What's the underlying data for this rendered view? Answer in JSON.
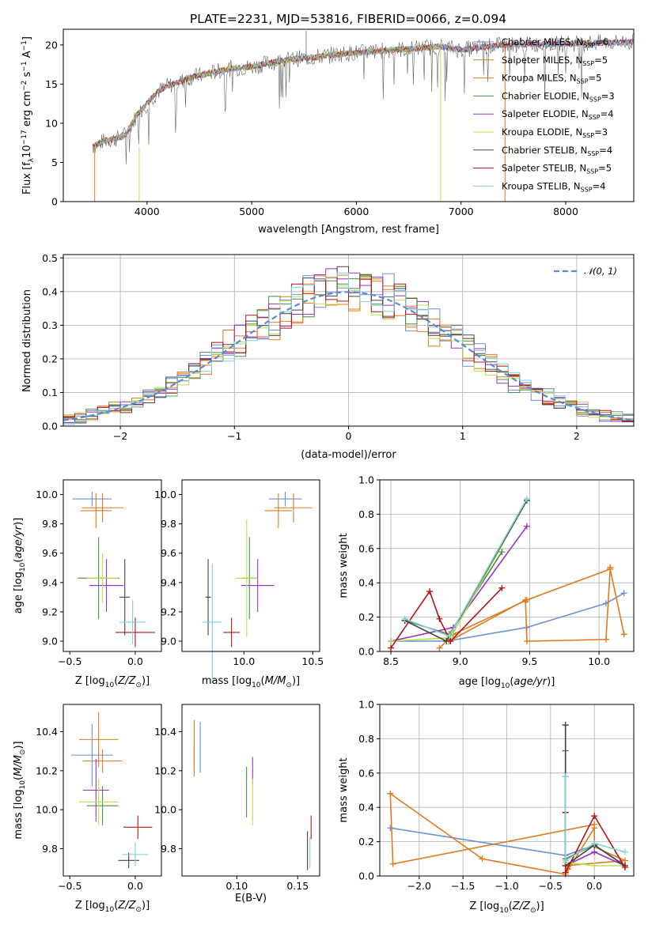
{
  "title": "PLATE=2231, MJD=53816, FIBERID=0066, z=0.094",
  "colors": [
    "#6a8fd8",
    "#e86f3c",
    "#d8883a",
    "#4c8c4c",
    "#a64ac8",
    "#d6d64a",
    "#6e6e6e",
    "#b22a2a",
    "#7fd0dc"
  ],
  "line_colors": [
    "#6a8fd8",
    "#e07a1f",
    "#e07a1f",
    "#4c8c4c",
    "#9b30c8",
    "#b9e04a",
    "#444444",
    "#b01515",
    "#7fd0dc"
  ],
  "legend": [
    {
      "label": "Chabrier MILES, N",
      "sub": "SSP",
      "rest": "=6"
    },
    {
      "label": "Salpeter MILES, N",
      "sub": "SSP",
      "rest": "=5"
    },
    {
      "label": "Kroupa MILES, N",
      "sub": "SSP",
      "rest": "=5"
    },
    {
      "label": "Chabrier ELODIE, N",
      "sub": "SSP",
      "rest": "=3"
    },
    {
      "label": "Salpeter ELODIE, N",
      "sub": "SSP",
      "rest": "=4"
    },
    {
      "label": "Kroupa ELODIE, N",
      "sub": "SSP",
      "rest": "=3"
    },
    {
      "label": "Chabrier STELIB, N",
      "sub": "SSP",
      "rest": "=4"
    },
    {
      "label": "Salpeter STELIB, N",
      "sub": "SSP",
      "rest": "=5"
    },
    {
      "label": "Kroupa STELIB, N",
      "sub": "SSP",
      "rest": "=4"
    }
  ],
  "chart_data": [
    {
      "type": "line",
      "id": "spectrum",
      "xlabel": "wavelength [Angstrom, rest frame]",
      "ylabel": "Flux [f_λ 10^-17 erg cm^-2 s^-1 A^-1]",
      "xlim": [
        3200,
        8650
      ],
      "ylim": [
        0,
        22
      ],
      "xticks": [
        4000,
        5000,
        6000,
        7000,
        8000
      ],
      "yticks": [
        0,
        5,
        10,
        15,
        20
      ],
      "x": [
        3480,
        3600,
        3700,
        3800,
        3900,
        4000,
        4100,
        4200,
        4300,
        4400,
        4600,
        4800,
        5000,
        5200,
        5400,
        5600,
        5800,
        6000,
        6200,
        6400,
        6600,
        6800,
        7000,
        7200,
        7400
      ],
      "y": [
        7.0,
        7.8,
        8.0,
        8.6,
        11.0,
        12.5,
        14.0,
        14.8,
        15.2,
        15.8,
        16.4,
        17.0,
        17.2,
        17.8,
        18.2,
        18.4,
        18.8,
        19.0,
        19.2,
        19.4,
        19.6,
        19.8,
        19.4,
        19.7,
        20.0
      ]
    },
    {
      "type": "bar",
      "id": "residuals",
      "xlabel": "(data-model)/error",
      "ylabel": "Normed distribution",
      "legend": "top-right",
      "gaussian_label": "𝒩(0, 1)",
      "xlim": [
        -2.5,
        2.5
      ],
      "ylim": [
        0,
        0.51
      ],
      "xticks": [
        -2,
        -1,
        0,
        1,
        2
      ],
      "xtick_labels": [
        "−2",
        "−1",
        "0",
        "1",
        "2"
      ],
      "yticks": [
        0.0,
        0.1,
        0.2,
        0.3,
        0.4,
        0.5
      ],
      "ytick_labels": [
        "0.0",
        "0.1",
        "0.2",
        "0.3",
        "0.4",
        "0.5"
      ],
      "bin_width": 0.1,
      "grid": true
    },
    {
      "type": "scatter",
      "id": "age_vs_Z",
      "xlabel": "Z [log10(Z/Z⊙)]",
      "ylabel": "age [log10(age/yr)]",
      "xlim": [
        -0.55,
        0.2
      ],
      "ylim": [
        8.93,
        10.1
      ],
      "xticks": [
        -0.5,
        0.0
      ],
      "xtick_labels": [
        "−0.5",
        "0.0"
      ],
      "yticks": [
        9.0,
        9.2,
        9.4,
        9.6,
        9.8,
        10.0
      ],
      "ytick_labels": [
        "9.0",
        "9.2",
        "9.4",
        "9.6",
        "9.8",
        "10.0"
      ],
      "points": [
        {
          "x": -0.33,
          "y": 9.97,
          "xerr": 0.15,
          "yerr": 0.05
        },
        {
          "x": -0.25,
          "y": 9.91,
          "xerr": 0.16,
          "yerr": 0.1
        },
        {
          "x": -0.3,
          "y": 9.89,
          "xerr": 0.12,
          "yerr": 0.12
        },
        {
          "x": -0.28,
          "y": 9.43,
          "xerr": 0.16,
          "yerr": 0.28
        },
        {
          "x": -0.22,
          "y": 9.38,
          "xerr": 0.13,
          "yerr": 0.18
        },
        {
          "x": -0.25,
          "y": 9.43,
          "xerr": 0.12,
          "yerr": 0.17
        },
        {
          "x": -0.08,
          "y": 9.3,
          "xerr": 0.04,
          "yerr": 0.26
        },
        {
          "x": 0.0,
          "y": 9.06,
          "xerr": 0.15,
          "yerr": 0.1
        },
        {
          "x": -0.02,
          "y": 9.13,
          "xerr": 0.1,
          "yerr": 0.15
        }
      ]
    },
    {
      "type": "scatter",
      "id": "age_vs_mass",
      "xlabel": "mass [log10(M/M⊙)]",
      "ylabel": "",
      "xlim": [
        9.55,
        10.55
      ],
      "ylim": [
        8.93,
        10.1
      ],
      "xticks": [
        10.0,
        10.5
      ],
      "xtick_labels": [
        "10.0",
        "10.5"
      ],
      "yticks": [
        9.0,
        9.2,
        9.4,
        9.6,
        9.8,
        10.0
      ],
      "ytick_labels": [
        "9.0",
        "9.2",
        "9.4",
        "9.6",
        "9.8",
        "10.0"
      ],
      "points": [
        {
          "x": 10.3,
          "y": 9.97,
          "xerr": 0.12,
          "yerr": 0.05
        },
        {
          "x": 10.36,
          "y": 9.91,
          "xerr": 0.14,
          "yerr": 0.1
        },
        {
          "x": 10.25,
          "y": 9.89,
          "xerr": 0.1,
          "yerr": 0.12
        },
        {
          "x": 10.04,
          "y": 9.43,
          "xerr": 0.06,
          "yerr": 0.28
        },
        {
          "x": 10.1,
          "y": 9.38,
          "xerr": 0.12,
          "yerr": 0.18
        },
        {
          "x": 10.02,
          "y": 9.43,
          "xerr": 0.08,
          "yerr": 0.4
        },
        {
          "x": 9.74,
          "y": 9.3,
          "xerr": 0.02,
          "yerr": 0.26
        },
        {
          "x": 9.91,
          "y": 9.06,
          "xerr": 0.06,
          "yerr": 0.1
        },
        {
          "x": 9.77,
          "y": 9.13,
          "xerr": 0.07,
          "yerr": 0.4
        }
      ]
    },
    {
      "type": "line",
      "id": "mass_weight_vs_age",
      "xlabel": "age  [log10(age/yr)]",
      "ylabel": "mass weight",
      "xlim": [
        8.42,
        10.25
      ],
      "ylim": [
        0.0,
        1.0
      ],
      "xticks": [
        8.5,
        9.0,
        9.5,
        10.0
      ],
      "xtick_labels": [
        "8.5",
        "9.0",
        "9.5",
        "10.0"
      ],
      "yticks": [
        0.0,
        0.2,
        0.4,
        0.6,
        0.8,
        1.0
      ],
      "ytick_labels": [
        "0.0",
        "0.2",
        "0.4",
        "0.6",
        "0.8",
        "1.0"
      ],
      "grid": true,
      "series": [
        {
          "x": [
            8.5,
            8.9,
            9.48,
            10.05,
            10.18
          ],
          "y": [
            0.06,
            0.06,
            0.14,
            0.28,
            0.34
          ]
        },
        {
          "x": [
            8.85,
            8.95,
            9.48,
            10.08,
            10.18
          ],
          "y": [
            0.02,
            0.1,
            0.3,
            0.48,
            0.1
          ]
        },
        {
          "x": [
            8.92,
            9.47,
            9.47,
            9.48,
            10.05,
            10.08,
            10.08
          ],
          "y": [
            0.06,
            0.3,
            0.29,
            0.06,
            0.07,
            0.48,
            0.49
          ]
        },
        {
          "x": [
            8.6,
            8.92,
            9.3
          ],
          "y": [
            0.18,
            0.1,
            0.58
          ]
        },
        {
          "x": [
            8.5,
            8.95,
            9.48
          ],
          "y": [
            0.06,
            0.14,
            0.73
          ]
        },
        {
          "x": [
            8.5,
            8.93,
            9.48
          ],
          "y": [
            0.06,
            0.08,
            0.88
          ]
        },
        {
          "x": [
            8.6,
            8.9,
            9.48
          ],
          "y": [
            0.18,
            0.06,
            0.88
          ]
        },
        {
          "x": [
            8.5,
            8.78,
            8.85,
            8.93,
            9.3
          ],
          "y": [
            0.02,
            0.35,
            0.19,
            0.06,
            0.37
          ]
        },
        {
          "x": [
            8.6,
            8.92,
            9.48
          ],
          "y": [
            0.19,
            0.09,
            0.89
          ]
        }
      ]
    },
    {
      "type": "scatter",
      "id": "mass_vs_Z",
      "xlabel": "Z [log10(Z/Z⊙)]",
      "ylabel": "mass [log10(M/M⊙)]",
      "xlim": [
        -0.55,
        0.2
      ],
      "ylim": [
        9.66,
        10.54
      ],
      "xticks": [
        -0.5,
        0.0
      ],
      "xtick_labels": [
        "−0.5",
        "0.0"
      ],
      "yticks": [
        9.8,
        10.0,
        10.2,
        10.4
      ],
      "ytick_labels": [
        "9.8",
        "10.0",
        "10.2",
        "10.4"
      ],
      "points": [
        {
          "x": -0.33,
          "y": 10.28,
          "xerr": 0.16,
          "yerr": 0.16
        },
        {
          "x": -0.28,
          "y": 10.36,
          "xerr": 0.15,
          "yerr": 0.14
        },
        {
          "x": -0.25,
          "y": 10.25,
          "xerr": 0.15,
          "yerr": 0.06
        },
        {
          "x": -0.25,
          "y": 10.02,
          "xerr": 0.12,
          "yerr": 0.1
        },
        {
          "x": -0.3,
          "y": 10.1,
          "xerr": 0.1,
          "yerr": 0.16
        },
        {
          "x": -0.28,
          "y": 10.04,
          "xerr": 0.15,
          "yerr": 0.12
        },
        {
          "x": -0.05,
          "y": 9.74,
          "xerr": 0.08,
          "yerr": 0.04
        },
        {
          "x": 0.02,
          "y": 9.91,
          "xerr": 0.11,
          "yerr": 0.06
        },
        {
          "x": 0.0,
          "y": 9.77,
          "xerr": 0.1,
          "yerr": 0.06
        }
      ]
    },
    {
      "type": "scatter",
      "id": "mass_vs_ebv",
      "xlabel": "E(B-V)",
      "ylabel": "",
      "xlim": [
        0.055,
        0.168
      ],
      "ylim": [
        9.66,
        10.54
      ],
      "xticks": [
        0.1,
        0.15
      ],
      "xtick_labels": [
        "0.10",
        "0.15"
      ],
      "yticks": [
        9.8,
        10.0,
        10.2,
        10.4
      ],
      "ytick_labels": [
        "9.8",
        "10.0",
        "10.2",
        "10.4"
      ],
      "points": [
        {
          "x": 0.07,
          "y": 10.32,
          "xerr": 0,
          "yerr": 0.13
        },
        {
          "x": 0.065,
          "y": 10.33,
          "xerr": 0,
          "yerr": 0.13
        },
        {
          "x": 0.065,
          "y": 10.25,
          "xerr": 0,
          "yerr": 0.08
        },
        {
          "x": 0.108,
          "y": 10.09,
          "xerr": 0,
          "yerr": 0.13
        },
        {
          "x": 0.113,
          "y": 10.2,
          "xerr": 0,
          "yerr": 0.07
        },
        {
          "x": 0.113,
          "y": 10.04,
          "xerr": 0,
          "yerr": 0.12
        },
        {
          "x": 0.158,
          "y": 9.79,
          "xerr": 0,
          "yerr": 0.1
        },
        {
          "x": 0.161,
          "y": 9.91,
          "xerr": 0,
          "yerr": 0.06
        },
        {
          "x": 0.16,
          "y": 9.78,
          "xerr": 0,
          "yerr": 0.08
        }
      ]
    },
    {
      "type": "line",
      "id": "mass_weight_vs_Z",
      "xlabel": "Z [log10(Z/Z⊙)]",
      "ylabel": "mass weight",
      "xlim": [
        -2.45,
        0.45
      ],
      "ylim": [
        0.0,
        1.0
      ],
      "xticks": [
        -2.0,
        -1.5,
        -1.0,
        -0.5,
        0.0
      ],
      "xtick_labels": [
        "−2.0",
        "−1.5",
        "−1.0",
        "−0.5",
        "0.0"
      ],
      "yticks": [
        0.0,
        0.2,
        0.4,
        0.6,
        0.8,
        1.0
      ],
      "ytick_labels": [
        "0.0",
        "0.2",
        "0.4",
        "0.6",
        "0.8",
        "1.0"
      ],
      "grid": true,
      "series": [
        {
          "x": [
            -2.33,
            -0.33,
            0.0,
            0.35
          ],
          "y": [
            0.28,
            0.12,
            0.18,
            0.06
          ]
        },
        {
          "x": [
            -2.33,
            -1.28,
            -0.33,
            0.0
          ],
          "y": [
            0.48,
            0.1,
            0.01,
            0.28
          ]
        },
        {
          "x": [
            -2.33,
            -2.3,
            0.0,
            0.0,
            0.35,
            -0.33,
            -0.3
          ],
          "y": [
            0.48,
            0.07,
            0.3,
            0.17,
            0.09,
            0.06,
            0.04
          ]
        },
        {
          "x": [
            -0.33,
            -0.33,
            0.0,
            0.35
          ],
          "y": [
            0.58,
            0.1,
            0.18,
            0.06
          ]
        },
        {
          "x": [
            -0.33,
            -0.33,
            0.0,
            0.35
          ],
          "y": [
            0.73,
            0.06,
            0.14,
            0.06
          ]
        },
        {
          "x": [
            -0.33,
            -0.33,
            0.0,
            0.35
          ],
          "y": [
            0.88,
            0.08,
            0.06,
            0.06
          ]
        },
        {
          "x": [
            -0.33,
            -0.33,
            0.0,
            0.35
          ],
          "y": [
            0.88,
            0.06,
            0.18,
            0.06
          ]
        },
        {
          "x": [
            -0.33,
            -0.33,
            0.0,
            0.35
          ],
          "y": [
            0.37,
            0.02,
            0.35,
            0.05
          ]
        },
        {
          "x": [
            -0.33,
            -0.33,
            0.0,
            0.35
          ],
          "y": [
            0.58,
            0.09,
            0.19,
            0.14
          ]
        }
      ]
    }
  ]
}
